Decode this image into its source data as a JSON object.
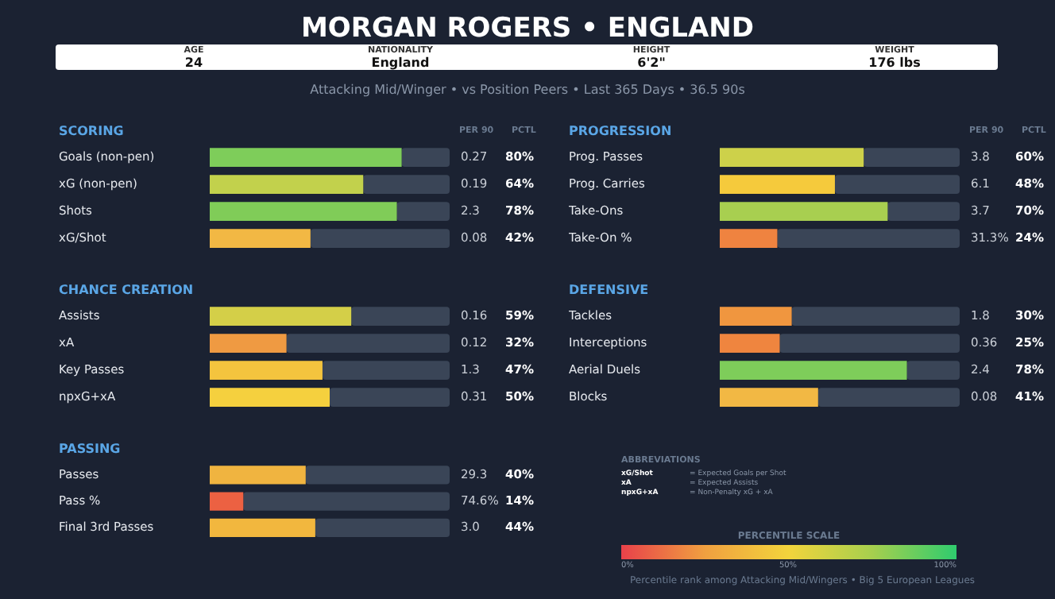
{
  "chart_data": [
    {
      "type": "other",
      "title": "MORGAN ROGERS  •  ENGLAND",
      "subtitle": "Attacking Mid/Winger  •  vs Position Peers  •  Last 365 Days  •  36.5 90s",
      "annotations": [
        "AGE",
        "24",
        "NATIONALITY",
        "England",
        "HEIGHT",
        "6'2\"",
        "WEIGHT",
        "176 lbs"
      ]
    },
    {
      "type": "bar",
      "orientation": "horizontal",
      "stacked": true,
      "title": "SCORING",
      "categories": [
        "Goals (non-pen)",
        "xG (non-pen)",
        "Shots",
        "xG/Shot"
      ],
      "xlim": [
        0,
        100
      ],
      "tick_labels": "y",
      "series": [
        {
          "colors": [
            "#7ecd5a",
            "#c2d14c",
            "#80cc58",
            "#f2b844"
          ],
          "values": [
            80,
            64,
            78,
            42
          ],
          "value_labels": [
            "80%",
            "64%",
            "78%",
            "42%"
          ]
        },
        {
          "color": "#3a4557",
          "values": [
            20,
            36,
            22,
            58
          ]
        }
      ],
      "annotations": [
        "PER 90",
        "PCTL",
        "0.27",
        "0.19",
        "2.3",
        "0.08"
      ]
    },
    {
      "type": "bar",
      "orientation": "horizontal",
      "stacked": true,
      "title": "PROGRESSION",
      "categories": [
        "Prog. Passes",
        "Prog. Carries",
        "Take-Ons",
        "Take-On %"
      ],
      "xlim": [
        0,
        100
      ],
      "tick_labels": "y",
      "series": [
        {
          "colors": [
            "#cdd14a",
            "#f5ca3c",
            "#a8cf50",
            "#ef8340"
          ],
          "values": [
            60,
            48,
            70,
            24
          ],
          "value_labels": [
            "60%",
            "48%",
            "70%",
            "24%"
          ]
        },
        {
          "color": "#3a4557",
          "values": [
            40,
            52,
            30,
            76
          ]
        }
      ],
      "annotations": [
        "PER 90",
        "PCTL",
        "3.8",
        "6.1",
        "3.7",
        "31.3%"
      ]
    },
    {
      "type": "bar",
      "orientation": "horizontal",
      "stacked": true,
      "title": "CHANCE CREATION",
      "categories": [
        "Assists",
        "xA",
        "Key Passes",
        "npxG+xA"
      ],
      "xlim": [
        0,
        100
      ],
      "tick_labels": "y",
      "series": [
        {
          "colors": [
            "#d4cf48",
            "#ef9a42",
            "#f4c43e",
            "#f5d03e"
          ],
          "values": [
            59,
            32,
            47,
            50
          ],
          "value_labels": [
            "59%",
            "32%",
            "47%",
            "50%"
          ]
        },
        {
          "color": "#3a4557",
          "values": [
            41,
            68,
            53,
            50
          ]
        }
      ],
      "annotations": [
        "0.16",
        "0.12",
        "1.3",
        "0.31"
      ]
    },
    {
      "type": "bar",
      "orientation": "horizontal",
      "stacked": true,
      "title": "DEFENSIVE",
      "categories": [
        "Tackles",
        "Interceptions",
        "Aerial Duels",
        "Blocks"
      ],
      "xlim": [
        0,
        100
      ],
      "tick_labels": "y",
      "series": [
        {
          "colors": [
            "#f0963f",
            "#ef853f",
            "#7ecd5a",
            "#f2b844"
          ],
          "values": [
            30,
            25,
            78,
            41
          ],
          "value_labels": [
            "30%",
            "25%",
            "78%",
            "41%"
          ]
        },
        {
          "color": "#3a4557",
          "values": [
            70,
            75,
            22,
            59
          ]
        }
      ],
      "annotations": [
        "1.8",
        "0.36",
        "2.4",
        "0.08"
      ]
    },
    {
      "type": "bar",
      "orientation": "horizontal",
      "stacked": true,
      "title": "PASSING",
      "categories": [
        "Passes",
        "Pass %",
        "Final 3rd Passes"
      ],
      "xlim": [
        0,
        100
      ],
      "tick_labels": "y",
      "series": [
        {
          "colors": [
            "#f0b440",
            "#ec6142",
            "#f2b73e"
          ],
          "values": [
            40,
            14,
            44
          ],
          "value_labels": [
            "40%",
            "14%",
            "44%"
          ]
        },
        {
          "color": "#3a4557",
          "values": [
            60,
            86,
            56
          ]
        }
      ],
      "annotations": [
        "29.3",
        "74.6%",
        "3.0"
      ]
    },
    {
      "type": "other",
      "title": "ABBREVIATIONS",
      "annotations": [
        "xG/Shot",
        "= Expected Goals per Shot",
        "xA",
        "= Expected Assists",
        "npxG+xA",
        "= Non-Penalty xG + xA"
      ]
    },
    {
      "type": "other",
      "title": "PERCENTILE SCALE",
      "annotations": [
        "0%",
        "50%",
        "100%",
        "Percentile rank among Attacking Mid/Wingers  •  Big 5 European Leagues"
      ]
    }
  ]
}
